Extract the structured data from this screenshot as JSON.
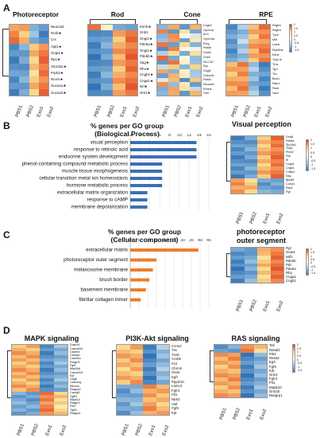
{
  "panel_labels": {
    "A": "A",
    "B": "B",
    "C": "C",
    "D": "D"
  },
  "samples": [
    "PBS1",
    "PBS2",
    "Exo1",
    "Exo2"
  ],
  "colorbar_ticks": [
    "2",
    "1.5",
    "1",
    "0.5",
    "0",
    "-0.5",
    "-1",
    "-1.5"
  ],
  "panelA": {
    "titles": {
      "photoreceptor": "Photoreceptor",
      "rod": "Rod",
      "cone": "Cone",
      "rpe": "RPE"
    },
    "photoreceptor_genes": [
      "Neurod1",
      "Rorb★",
      "Crx",
      "Aipl1★",
      "Gngt1★",
      "Rp1★",
      "Slc24a1★",
      "Prph2★",
      "Rcvrn★",
      "Guca1a★",
      "Guca1b★"
    ],
    "rod_genes": [
      "Esrrb★",
      "Gnb1",
      "Gngt1★",
      "Pde6a★",
      "Gngt1★",
      "Pde6b★",
      "Sag★",
      "Rho★",
      "Cngb1★",
      "Cnga1★",
      "Nrl★",
      "Grk1★"
    ],
    "cone_genes": [
      "Cngb3",
      "Opn1sw",
      "Arr3",
      "Opn1mw",
      "Rxrg",
      "Pde6h",
      "Gnat2",
      "Gnb3",
      "Slc17a7",
      "Syn",
      "Gngt2",
      "Onecut1",
      "Pde6c",
      "Neurod1",
      "Rorb★",
      "Thrb"
    ],
    "rpe_genes": [
      "Pdgfrb",
      "Pdgfra",
      "Tyr★",
      "Mitf",
      "Lrat★",
      "Rpe65★",
      "Dct★",
      "Tyrp1★",
      "Ttr★",
      "Tjp1",
      "Tfrc",
      "Best1",
      "Rlbp1",
      "Pax6",
      "Vax2"
    ]
  },
  "panelB": {
    "chart_title_line1": "% genes per GO group",
    "chart_title_line2": "(Biological Process)",
    "heatmap_title": "Visual perception",
    "heatmap_genes": [
      "Gnat1",
      "Pde6a",
      "Slc24a1",
      "Tulp1",
      "Prph2",
      "Pdc",
      "Ift",
      "Cngb1",
      "Cngb1",
      "Col8a1",
      "Sag",
      "Bpe65",
      "Col1a1",
      "Rbp1",
      "Rgr"
    ]
  },
  "panelC": {
    "chart_title_line1": "% genes per GO group",
    "chart_title_line2": "(Cellular component)",
    "heatmap_title_line1": "photoreceptor",
    "heatmap_title_line2": "outer segment",
    "heatmap_genes": [
      "Rgr",
      "Gnat1",
      "Mtf1",
      "Pde6b",
      "Pdc",
      "Pde6a",
      "Rho",
      "Cnga1",
      "Cngb1"
    ]
  },
  "panelD": {
    "titles": {
      "mapk": "MAPK signaling",
      "pi3k": "PI3K-Akt signaling",
      "ras": "RAS signaling"
    },
    "mapk_genes": [
      "Dusp16",
      "Cacna2d1",
      "Cacnb4",
      "Cacng4",
      "Cacna1c",
      "Rasgrf1",
      "Fgf9",
      "Map3k8",
      "Cacna2d3",
      "Kdr",
      "Gng8",
      "Cacna1g",
      "Mecom",
      "Rasgrp2",
      "Cacng5",
      "Tgfb2",
      "Mapk10",
      "Rasgrf1",
      "Flrt2",
      "Tgfb2",
      "Rasgrp1"
    ],
    "pi3k_genes": [
      "Ccne2",
      "Tnc",
      "Tnxb",
      "Creb5",
      "Irs1",
      "Chrm2",
      "Osmr",
      "Egfr",
      "Ppp2r2c",
      "Lamc3",
      "Fgfr4",
      "Flt1",
      "Ntrk3",
      "Vwf",
      "Fgf9",
      "Kdr"
    ],
    "ras_genes": [
      "Tek",
      "Rasal2",
      "Pik3",
      "Rasa2",
      "Egfr",
      "Fgf9",
      "Kdr",
      "Grin1",
      "Fgfr4",
      "Flt1",
      "Mapk10",
      "Grin2b",
      "Rasgrp1"
    ]
  },
  "chart_data": [
    {
      "type": "bar",
      "title": "% genes per GO group (Biological Process)",
      "categories": [
        "visual perception",
        "response to retinoic acid",
        "endocrine system development",
        "phenol-containing compound metabolic process",
        "muscle tissue morphogenesis",
        "cellular transition metal ion homeostasis",
        "hormone metabolic process",
        "extracellular matrix organization",
        "response to cAMP",
        "membrane depolarization"
      ],
      "values": [
        13.5,
        13.5,
        13.5,
        6.5,
        6.5,
        6.5,
        6.5,
        3.5,
        3.5,
        3.5
      ],
      "xlim": [
        0,
        16
      ],
      "xticks": [
        "0",
        "2",
        "4",
        "6",
        "8",
        "10",
        "12",
        "14",
        "16"
      ],
      "color": "#3b6fb6",
      "orientation": "horizontal"
    },
    {
      "type": "bar",
      "title": "% genes per GO group (Cellular component)",
      "categories": [
        "extracellular matrix",
        "photoreceptor outer segment",
        "melanosome membrane",
        "brush border",
        "basement membrane",
        "fibrillar collagen trimer"
      ],
      "values": [
        39,
        15,
        13,
        11,
        9,
        6
      ],
      "xlim": [
        0,
        45
      ],
      "xticks": [
        "0",
        "5",
        "10",
        "15",
        "20",
        "25",
        "30",
        "35",
        "40",
        "45"
      ],
      "color": "#ef7d27",
      "orientation": "horizontal"
    }
  ]
}
